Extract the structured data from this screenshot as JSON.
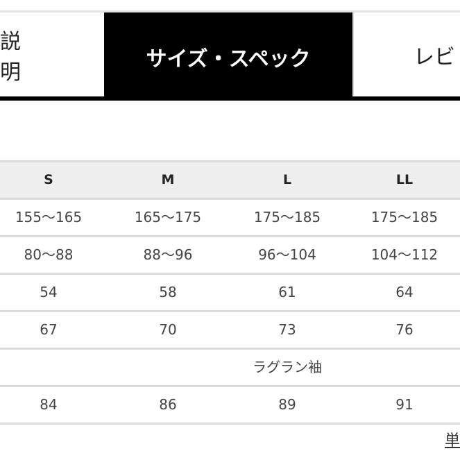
{
  "tabs": [
    {
      "label": "説明",
      "active": false
    },
    {
      "label": "サイズ・スペック",
      "active": true
    },
    {
      "label": "レビ",
      "active": false
    }
  ],
  "size_table": {
    "headers": [
      "S",
      "M",
      "L",
      "LL"
    ],
    "rows": [
      [
        "155〜165",
        "165〜175",
        "175〜185",
        "175〜185"
      ],
      [
        "80〜88",
        "88〜96",
        "96〜104",
        "104〜112"
      ],
      [
        "54",
        "58",
        "61",
        "64"
      ],
      [
        "67",
        "70",
        "73",
        "76"
      ],
      {
        "span": "ラグラン袖"
      },
      [
        "84",
        "86",
        "89",
        "91"
      ]
    ]
  },
  "footer_link_partial": "単"
}
